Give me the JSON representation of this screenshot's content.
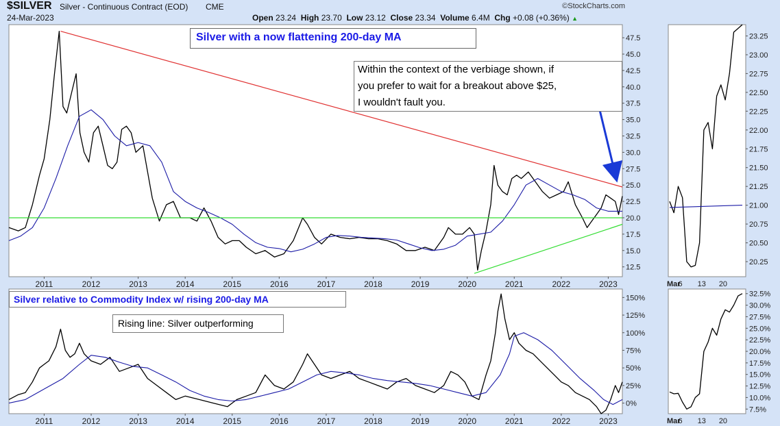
{
  "header": {
    "symbol": "$SILVER",
    "description": "Silver - Continuous Contract (EOD)",
    "exchange": "CME",
    "date": "24-Mar-2023",
    "brand": "©StockCharts.com",
    "open_label": "Open",
    "open_value": "23.24",
    "high_label": "High",
    "high_value": "23.70",
    "low_label": "Low",
    "low_value": "23.12",
    "close_label": "Close",
    "close_value": "23.34",
    "volume_label": "Volume",
    "volume_value": "6.4M",
    "chg_label": "Chg",
    "chg_value": "+0.08 (+0.36%)",
    "up_arrow": "▲"
  },
  "annotations": {
    "main_title": "Silver with a now flattening 200-day MA",
    "comment_lines": [
      "Within the context of the verbiage shown, if",
      "you prefer to wait for a breakout above $25,",
      "I wouldn't fault you."
    ],
    "lower_title": "Silver relative to Commodity Index w/ rising 200-day MA",
    "lower_note": "Rising line: Silver outperforming"
  },
  "colors": {
    "background": "#d5e3f7",
    "panel": "#ffffff",
    "price": "#000000",
    "moving_average": "#1a1aa6",
    "resistance": "#e03030",
    "support": "#33dd33",
    "title": "#1a1ae6",
    "arrow": "#1a3ad6"
  },
  "chart_data": [
    {
      "type": "line",
      "panel": "main",
      "title": "Silver with a now flattening 200-day MA",
      "x_ticks": [
        "2011",
        "2012",
        "2013",
        "2014",
        "2015",
        "2016",
        "2017",
        "2018",
        "2019",
        "2020",
        "2021",
        "2022",
        "2023"
      ],
      "y_ticks": [
        "12.5",
        "15.0",
        "17.5",
        "20.0",
        "22.5",
        "25.0",
        "27.5",
        "30.0",
        "32.5",
        "35.0",
        "37.5",
        "40.0",
        "42.5",
        "45.0",
        "47.5"
      ],
      "ylim": [
        11.0,
        49.5
      ],
      "xlim": [
        2010.25,
        2023.3
      ],
      "series": [
        {
          "role": "price",
          "x": [
            2010.25,
            2010.45,
            2010.6,
            2010.75,
            2010.9,
            2011.0,
            2011.12,
            2011.22,
            2011.32,
            2011.4,
            2011.48,
            2011.58,
            2011.68,
            2011.76,
            2011.85,
            2011.95,
            2012.05,
            2012.15,
            2012.25,
            2012.35,
            2012.45,
            2012.55,
            2012.65,
            2012.75,
            2012.85,
            2012.95,
            2013.1,
            2013.3,
            2013.45,
            2013.6,
            2013.75,
            2013.9,
            2014.1,
            2014.25,
            2014.4,
            2014.55,
            2014.7,
            2014.85,
            2015.0,
            2015.15,
            2015.3,
            2015.5,
            2015.7,
            2015.9,
            2016.1,
            2016.3,
            2016.5,
            2016.6,
            2016.75,
            2016.9,
            2017.1,
            2017.3,
            2017.5,
            2017.7,
            2017.9,
            2018.1,
            2018.3,
            2018.5,
            2018.7,
            2018.9,
            2019.1,
            2019.3,
            2019.5,
            2019.6,
            2019.75,
            2019.9,
            2020.05,
            2020.15,
            2020.22,
            2020.3,
            2020.4,
            2020.5,
            2020.57,
            2020.65,
            2020.75,
            2020.85,
            2020.95,
            2021.05,
            2021.15,
            2021.3,
            2021.45,
            2021.6,
            2021.75,
            2021.9,
            2022.05,
            2022.15,
            2022.3,
            2022.45,
            2022.55,
            2022.65,
            2022.75,
            2022.85,
            2022.95,
            2023.05,
            2023.15,
            2023.22,
            2023.3
          ],
          "y": [
            18.5,
            18.0,
            18.5,
            22.0,
            26.5,
            29.0,
            35.0,
            42.0,
            48.5,
            37.0,
            36.0,
            39.0,
            42.0,
            33.0,
            30.0,
            28.5,
            33.0,
            34.0,
            31.0,
            28.0,
            27.5,
            28.5,
            33.5,
            34.0,
            33.0,
            30.0,
            31.0,
            23.0,
            19.5,
            22.0,
            22.5,
            20.0,
            20.0,
            19.5,
            21.5,
            19.5,
            17.0,
            16.0,
            16.5,
            16.5,
            15.5,
            14.5,
            15.0,
            14.0,
            14.5,
            16.5,
            20.0,
            19.0,
            17.0,
            16.0,
            17.5,
            17.0,
            16.8,
            17.0,
            16.8,
            16.8,
            16.5,
            16.0,
            15.0,
            15.0,
            15.5,
            15.0,
            17.0,
            18.5,
            17.5,
            17.5,
            18.5,
            17.5,
            12.0,
            15.0,
            18.0,
            22.0,
            28.0,
            25.0,
            24.0,
            23.5,
            26.0,
            26.5,
            26.0,
            27.0,
            25.5,
            24.0,
            23.0,
            23.5,
            24.0,
            25.5,
            22.0,
            20.0,
            18.5,
            19.5,
            20.5,
            21.5,
            23.5,
            23.0,
            22.5,
            20.5,
            23.3
          ]
        },
        {
          "role": "moving_average",
          "x": [
            2010.25,
            2010.5,
            2010.75,
            2011.0,
            2011.25,
            2011.5,
            2011.75,
            2012.0,
            2012.25,
            2012.5,
            2012.75,
            2013.0,
            2013.25,
            2013.5,
            2013.75,
            2014.0,
            2014.25,
            2014.5,
            2014.75,
            2015.0,
            2015.25,
            2015.5,
            2015.75,
            2016.0,
            2016.25,
            2016.5,
            2016.75,
            2017.0,
            2017.25,
            2017.5,
            2017.75,
            2018.0,
            2018.25,
            2018.5,
            2018.75,
            2019.0,
            2019.25,
            2019.5,
            2019.75,
            2020.0,
            2020.25,
            2020.5,
            2020.75,
            2021.0,
            2021.25,
            2021.5,
            2021.75,
            2022.0,
            2022.25,
            2022.5,
            2022.75,
            2023.0,
            2023.3
          ],
          "y": [
            16.5,
            17.2,
            18.5,
            21.5,
            26.0,
            31.0,
            35.5,
            36.5,
            35.0,
            32.5,
            31.0,
            31.5,
            31.0,
            28.5,
            24.0,
            22.5,
            21.5,
            20.8,
            20.0,
            19.0,
            17.5,
            16.2,
            15.5,
            15.3,
            14.8,
            15.2,
            16.0,
            17.0,
            17.3,
            17.2,
            17.0,
            16.9,
            16.8,
            16.6,
            16.0,
            15.4,
            15.0,
            15.2,
            15.8,
            17.2,
            17.5,
            17.8,
            19.5,
            22.0,
            25.0,
            26.0,
            25.0,
            24.0,
            23.5,
            22.8,
            21.5,
            21.0,
            21.0
          ]
        },
        {
          "role": "resistance",
          "x": [
            2011.35,
            2023.3
          ],
          "y": [
            48.5,
            24.7
          ]
        },
        {
          "role": "support_horizontal",
          "x": [
            2010.25,
            2023.3
          ],
          "y": [
            20.0,
            20.0
          ]
        },
        {
          "role": "support_rising",
          "x": [
            2020.15,
            2023.3
          ],
          "y": [
            11.5,
            19.0
          ]
        }
      ]
    },
    {
      "type": "line",
      "panel": "main_inset",
      "x_ticks": [
        "Mar",
        "6",
        "13",
        "20"
      ],
      "y_ticks": [
        "20.25",
        "20.50",
        "20.75",
        "21.00",
        "21.25",
        "21.50",
        "21.75",
        "22.00",
        "22.25",
        "22.50",
        "22.75",
        "23.00",
        "23.25"
      ],
      "ylim": [
        20.05,
        23.4
      ],
      "series": [
        {
          "role": "price",
          "x": [
            0,
            1,
            2,
            3,
            4,
            5,
            6,
            7,
            8,
            9,
            10,
            11,
            12,
            13,
            14,
            15,
            16,
            17
          ],
          "y": [
            21.05,
            20.9,
            21.25,
            21.1,
            20.25,
            20.18,
            20.2,
            20.5,
            22.0,
            22.1,
            21.75,
            22.45,
            22.6,
            22.4,
            22.75,
            23.3,
            23.35,
            23.4
          ]
        },
        {
          "role": "moving_average",
          "x": [
            0,
            17
          ],
          "y": [
            20.97,
            21.0
          ]
        }
      ]
    },
    {
      "type": "line",
      "panel": "lower",
      "title": "Silver relative to Commodity Index w/ rising 200-day MA",
      "x_ticks": [
        "2011",
        "2012",
        "2013",
        "2014",
        "2015",
        "2016",
        "2017",
        "2018",
        "2019",
        "2020",
        "2021",
        "2022",
        "2023"
      ],
      "y_ticks": [
        "0%",
        "25%",
        "50%",
        "75%",
        "100%",
        "125%",
        "150%"
      ],
      "ylim": [
        -15,
        162
      ],
      "xlim": [
        2010.25,
        2023.3
      ],
      "series": [
        {
          "role": "price",
          "x": [
            2010.25,
            2010.45,
            2010.6,
            2010.75,
            2010.9,
            2011.0,
            2011.1,
            2011.25,
            2011.35,
            2011.45,
            2011.55,
            2011.65,
            2011.75,
            2011.85,
            2012.0,
            2012.2,
            2012.4,
            2012.6,
            2012.8,
            2013.0,
            2013.2,
            2013.4,
            2013.6,
            2013.8,
            2014.0,
            2014.3,
            2014.6,
            2014.9,
            2015.1,
            2015.3,
            2015.5,
            2015.7,
            2015.9,
            2016.1,
            2016.3,
            2016.5,
            2016.6,
            2016.75,
            2016.9,
            2017.1,
            2017.3,
            2017.5,
            2017.7,
            2017.9,
            2018.1,
            2018.3,
            2018.5,
            2018.7,
            2018.9,
            2019.1,
            2019.3,
            2019.5,
            2019.65,
            2019.8,
            2019.95,
            2020.1,
            2020.25,
            2020.4,
            2020.5,
            2020.6,
            2020.65,
            2020.72,
            2020.8,
            2020.9,
            2021.0,
            2021.1,
            2021.25,
            2021.4,
            2021.55,
            2021.7,
            2021.85,
            2022.0,
            2022.15,
            2022.3,
            2022.45,
            2022.6,
            2022.75,
            2022.85,
            2022.95,
            2023.05,
            2023.15,
            2023.22,
            2023.3
          ],
          "y": [
            5,
            12,
            15,
            30,
            50,
            55,
            60,
            80,
            105,
            75,
            65,
            70,
            85,
            70,
            60,
            55,
            65,
            45,
            50,
            55,
            35,
            25,
            15,
            5,
            10,
            5,
            0,
            -5,
            5,
            10,
            15,
            40,
            25,
            20,
            30,
            55,
            70,
            55,
            40,
            35,
            40,
            45,
            35,
            30,
            25,
            20,
            30,
            35,
            25,
            20,
            15,
            25,
            45,
            40,
            30,
            10,
            5,
            40,
            60,
            100,
            130,
            155,
            120,
            90,
            100,
            85,
            75,
            70,
            60,
            50,
            40,
            30,
            25,
            15,
            10,
            5,
            -5,
            -15,
            -10,
            5,
            25,
            15,
            30
          ]
        },
        {
          "role": "moving_average",
          "x": [
            2010.25,
            2010.6,
            2011.0,
            2011.4,
            2011.75,
            2012.0,
            2012.3,
            2012.6,
            2012.9,
            2013.2,
            2013.5,
            2013.8,
            2014.1,
            2014.4,
            2014.7,
            2015.0,
            2015.3,
            2015.6,
            2015.9,
            2016.2,
            2016.5,
            2016.8,
            2017.1,
            2017.4,
            2017.7,
            2018.0,
            2018.3,
            2018.6,
            2018.9,
            2019.2,
            2019.5,
            2019.8,
            2020.1,
            2020.4,
            2020.7,
            2020.9,
            2021.0,
            2021.2,
            2021.5,
            2021.8,
            2022.1,
            2022.4,
            2022.7,
            2022.9,
            2023.1,
            2023.3
          ],
          "y": [
            0,
            5,
            20,
            35,
            55,
            68,
            65,
            58,
            52,
            50,
            40,
            30,
            18,
            10,
            5,
            3,
            5,
            10,
            15,
            20,
            30,
            40,
            45,
            43,
            40,
            35,
            32,
            30,
            28,
            25,
            20,
            15,
            10,
            15,
            40,
            70,
            95,
            100,
            90,
            75,
            55,
            35,
            18,
            5,
            -2,
            5
          ]
        }
      ]
    },
    {
      "type": "line",
      "panel": "lower_inset",
      "x_ticks": [
        "Mar",
        "6",
        "13",
        "20"
      ],
      "y_ticks": [
        "7.5%",
        "10.0%",
        "12.5%",
        "15.0%",
        "17.5%",
        "20.0%",
        "22.5%",
        "25.0%",
        "27.5%",
        "30.0%",
        "32.5%"
      ],
      "ylim": [
        6.5,
        33.5
      ],
      "series": [
        {
          "role": "price",
          "x": [
            0,
            1,
            2,
            3,
            4,
            5,
            6,
            7,
            8,
            9,
            10,
            11,
            12,
            13,
            14,
            15,
            16,
            17
          ],
          "y": [
            11.2,
            10.8,
            10.9,
            9.0,
            7.5,
            8.0,
            10.0,
            10.8,
            20.0,
            22.0,
            25.0,
            23.5,
            27.0,
            29.0,
            28.5,
            30.0,
            32.0,
            32.5
          ]
        }
      ]
    }
  ]
}
